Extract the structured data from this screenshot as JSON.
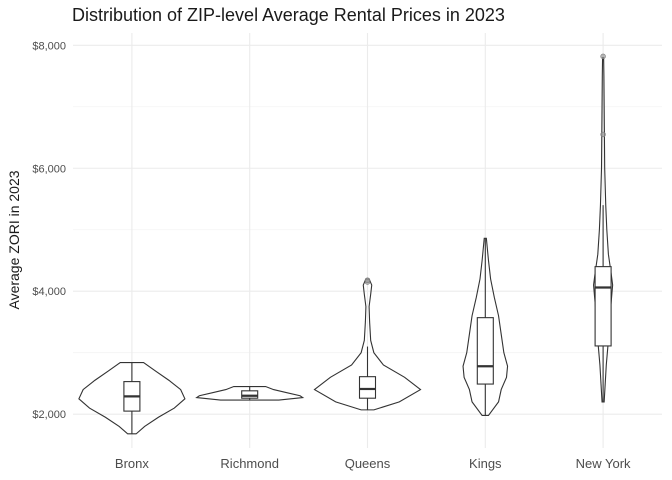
{
  "chart_data": {
    "type": "violin",
    "title": "Distribution of ZIP-level Average Rental Prices in 2023",
    "xlabel": "",
    "ylabel": "Average ZORI in 2023",
    "ylim": [
      1450,
      8200
    ],
    "yticks": [
      2000,
      4000,
      6000,
      8000
    ],
    "ytick_labels": [
      "$2,000",
      "$4,000",
      "$6,000",
      "$8,000"
    ],
    "grid": true,
    "categories": [
      "Bronx",
      "Richmond",
      "Queens",
      "Kings",
      "New York"
    ],
    "series": [
      {
        "category": "Bronx",
        "min": 1680,
        "q1": 2050,
        "median": 2290,
        "q3": 2530,
        "max": 2840,
        "violin": [
          [
            1680,
            0.08
          ],
          [
            1800,
            0.24
          ],
          [
            1950,
            0.5
          ],
          [
            2100,
            0.8
          ],
          [
            2250,
            1.0
          ],
          [
            2400,
            0.92
          ],
          [
            2550,
            0.7
          ],
          [
            2700,
            0.45
          ],
          [
            2840,
            0.22
          ]
        ],
        "outliers": []
      },
      {
        "category": "Richmond",
        "min": 2230,
        "q1": 2260,
        "median": 2300,
        "q3": 2380,
        "max": 2450,
        "violin": [
          [
            2230,
            0.55
          ],
          [
            2270,
            1.0
          ],
          [
            2300,
            0.95
          ],
          [
            2350,
            0.7
          ],
          [
            2400,
            0.45
          ],
          [
            2450,
            0.3
          ]
        ],
        "outliers": []
      },
      {
        "category": "Queens",
        "min": 2070,
        "q1": 2260,
        "median": 2410,
        "q3": 2610,
        "max": 3100,
        "violin": [
          [
            2070,
            0.12
          ],
          [
            2200,
            0.6
          ],
          [
            2400,
            1.0
          ],
          [
            2600,
            0.7
          ],
          [
            2800,
            0.3
          ],
          [
            3000,
            0.12
          ],
          [
            3200,
            0.06
          ],
          [
            3500,
            0.04
          ],
          [
            3750,
            0.03
          ],
          [
            3950,
            0.06
          ],
          [
            4100,
            0.08
          ],
          [
            4200,
            0.03
          ]
        ],
        "outliers": [
          4150,
          4180
        ]
      },
      {
        "category": "Kings",
        "min": 1980,
        "q1": 2490,
        "median": 2780,
        "q3": 3570,
        "max": 4860,
        "violin": [
          [
            1980,
            0.06
          ],
          [
            2200,
            0.25
          ],
          [
            2400,
            0.3
          ],
          [
            2600,
            0.4
          ],
          [
            2780,
            0.42
          ],
          [
            3000,
            0.35
          ],
          [
            3300,
            0.3
          ],
          [
            3600,
            0.25
          ],
          [
            3900,
            0.17
          ],
          [
            4200,
            0.1
          ],
          [
            4500,
            0.06
          ],
          [
            4860,
            0.02
          ]
        ],
        "outliers": []
      },
      {
        "category": "New York",
        "min": 2200,
        "q1": 3110,
        "median": 4060,
        "q3": 4400,
        "max": 5400,
        "violin": [
          [
            2200,
            0.02
          ],
          [
            2500,
            0.04
          ],
          [
            2800,
            0.06
          ],
          [
            3100,
            0.09
          ],
          [
            3500,
            0.12
          ],
          [
            3900,
            0.16
          ],
          [
            4100,
            0.18
          ],
          [
            4300,
            0.15
          ],
          [
            4600,
            0.1
          ],
          [
            5000,
            0.07
          ],
          [
            5400,
            0.05
          ],
          [
            6000,
            0.03
          ],
          [
            6500,
            0.025
          ],
          [
            7000,
            0.02
          ],
          [
            7500,
            0.015
          ],
          [
            7800,
            0.01
          ]
        ],
        "outliers": [
          6550,
          7820
        ]
      }
    ]
  }
}
